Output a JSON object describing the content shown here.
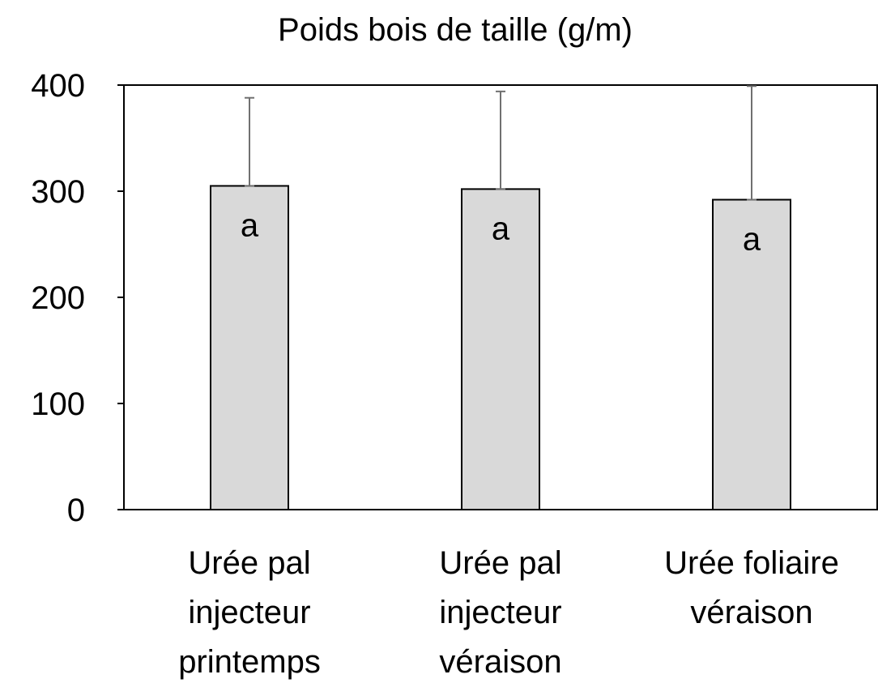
{
  "chart_data": {
    "type": "bar",
    "title": "Poids bois de taille (g/m)",
    "categories": [
      "Urée pal\ninjecteur\nprintemps",
      "Urée pal\ninjecteur\nvéraison",
      "Urée foliaire\nvéraison"
    ],
    "values": [
      305,
      302,
      292
    ],
    "errors": [
      83,
      92,
      107
    ],
    "color": "#d9d9d9",
    "error_color": "#707070",
    "annotations": [
      "a",
      "a",
      "a"
    ],
    "ylim": [
      0,
      400
    ],
    "yticks": [
      0,
      100,
      200,
      300,
      400
    ],
    "grid": false
  }
}
